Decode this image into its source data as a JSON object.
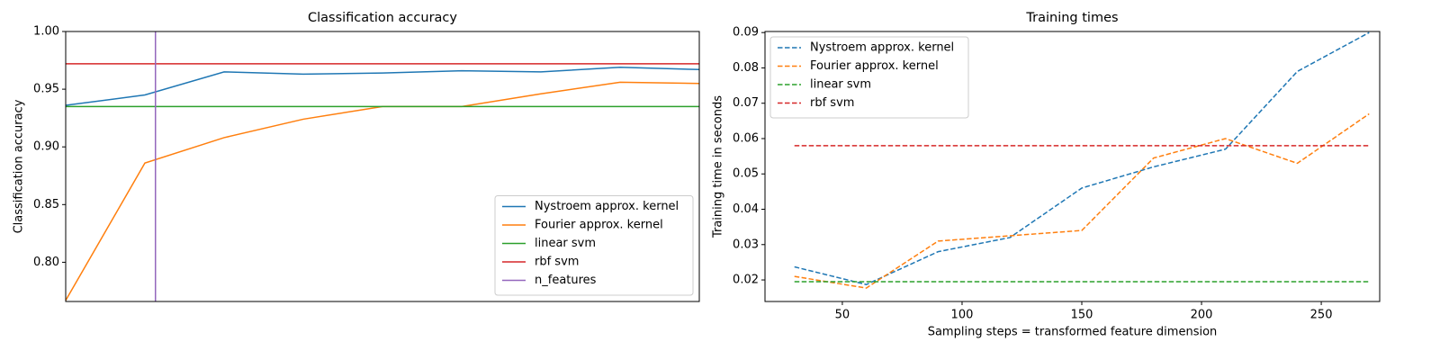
{
  "chart_data": [
    {
      "type": "line",
      "title": "Classification accuracy",
      "ylabel": "Classification accuracy",
      "x": [
        30,
        60,
        90,
        120,
        150,
        180,
        210,
        240,
        270
      ],
      "xlim": [
        30,
        270
      ],
      "ylim": [
        0.766,
        1.0
      ],
      "yticks": [
        {
          "value": 0.8,
          "label": "0.80"
        },
        0.85,
        {
          "value": 0.9,
          "label": "0.90"
        },
        0.95,
        {
          "value": 1.0,
          "label": "1.00"
        }
      ],
      "legend": "lower right",
      "series": [
        {
          "name": "Nystroem approx. kernel",
          "color": "#1f77b4",
          "dash": false,
          "values": [
            0.936,
            0.945,
            0.965,
            0.963,
            0.964,
            0.966,
            0.965,
            0.969,
            0.967
          ]
        },
        {
          "name": "Fourier approx. kernel",
          "color": "#ff7f0e",
          "dash": false,
          "values": [
            0.767,
            0.886,
            0.908,
            0.924,
            0.935,
            0.935,
            0.946,
            0.956,
            0.955
          ]
        },
        {
          "name": "linear svm",
          "color": "#2ca02c",
          "dash": false,
          "hline": 0.935
        },
        {
          "name": "rbf svm",
          "color": "#d62728",
          "dash": false,
          "hline": 0.972
        },
        {
          "name": "n_features",
          "color": "#9467bd",
          "dash": false,
          "vline": 64
        }
      ]
    },
    {
      "type": "line",
      "title": "Training times",
      "ylabel": "Training time in seconds",
      "xlabel": "Sampling steps = transformed feature dimension",
      "x": [
        30,
        60,
        90,
        120,
        150,
        180,
        210,
        240,
        270
      ],
      "xlim": [
        17.7,
        274.4
      ],
      "ylim": [
        0.0139,
        0.0903
      ],
      "xticks": [
        50,
        100,
        150,
        200,
        250
      ],
      "yticks": [
        0.02,
        0.03,
        0.04,
        0.05,
        0.06,
        0.07,
        0.08,
        0.09
      ],
      "legend": "upper left",
      "series": [
        {
          "name": "Nystroem approx. kernel",
          "color": "#1f77b4",
          "dash": true,
          "values": [
            0.0237,
            0.0187,
            0.028,
            0.032,
            0.046,
            0.052,
            0.057,
            0.079,
            0.09
          ]
        },
        {
          "name": "Fourier approx. kernel",
          "color": "#ff7f0e",
          "dash": true,
          "values": [
            0.021,
            0.0177,
            0.031,
            0.0325,
            0.034,
            0.0545,
            0.06,
            0.053,
            0.067
          ]
        },
        {
          "name": "linear svm",
          "color": "#2ca02c",
          "dash": true,
          "hline": 0.0195
        },
        {
          "name": "rbf svm",
          "color": "#d62728",
          "dash": true,
          "hline": 0.058
        }
      ]
    }
  ]
}
